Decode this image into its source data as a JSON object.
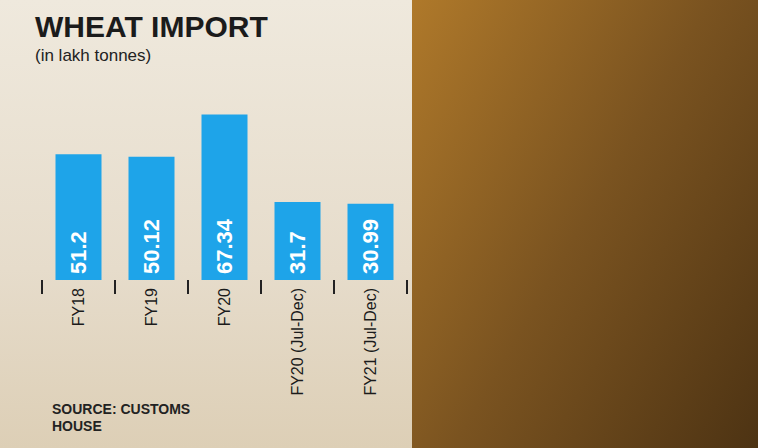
{
  "chart_data": {
    "type": "bar",
    "title": "WHEAT IMPORT",
    "subtitle": "(in lakh tonnes)",
    "source": "SOURCE: CUSTOMS HOUSE",
    "categories": [
      "FY18",
      "FY19",
      "FY20",
      "FY20 (Jul-Dec)",
      "FY21 (Jul-Dec)"
    ],
    "values": [
      51.2,
      50.12,
      67.34,
      31.7,
      30.99
    ],
    "color": "#1ea4e9",
    "ylim": [
      0,
      70
    ],
    "grid": false,
    "data_labels": true,
    "tick_labels": "x"
  }
}
